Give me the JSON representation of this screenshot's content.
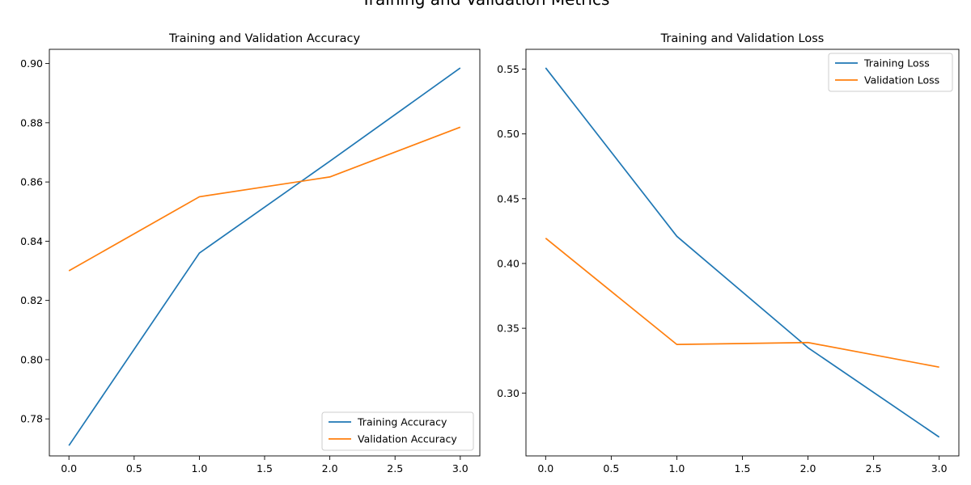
{
  "figure": {
    "suptitle": "Training and Validation Metrics"
  },
  "chart_data": [
    {
      "type": "line",
      "title": "Training and Validation Accuracy",
      "xlabel": "",
      "ylabel": "",
      "x": [
        0,
        1,
        2,
        3
      ],
      "xlim": [
        -0.15,
        3.15
      ],
      "ylim": [
        0.7675,
        0.9048
      ],
      "xticks": [
        "0.0",
        "0.5",
        "1.0",
        "1.5",
        "2.0",
        "2.5",
        "3.0"
      ],
      "yticks": [
        "0.78",
        "0.80",
        "0.82",
        "0.84",
        "0.86",
        "0.88",
        "0.90"
      ],
      "grid": false,
      "legend_position": "lower right",
      "series": [
        {
          "name": "Training Accuracy",
          "color": "#1f77b4",
          "values": [
            0.771,
            0.836,
            0.867,
            0.8985
          ]
        },
        {
          "name": "Validation Accuracy",
          "color": "#ff7f0e",
          "values": [
            0.83,
            0.855,
            0.8617,
            0.8785
          ]
        }
      ]
    },
    {
      "type": "line",
      "title": "Training and Validation Loss",
      "xlabel": "",
      "ylabel": "",
      "x": [
        0,
        1,
        2,
        3
      ],
      "xlim": [
        -0.15,
        3.15
      ],
      "ylim": [
        0.2515,
        0.5653
      ],
      "xticks": [
        "0.0",
        "0.5",
        "1.0",
        "1.5",
        "2.0",
        "2.5",
        "3.0"
      ],
      "yticks": [
        "0.30",
        "0.35",
        "0.40",
        "0.45",
        "0.50",
        "0.55"
      ],
      "grid": false,
      "legend_position": "upper right",
      "series": [
        {
          "name": "Training Loss",
          "color": "#1f77b4",
          "values": [
            0.551,
            0.421,
            0.335,
            0.266
          ]
        },
        {
          "name": "Validation Loss",
          "color": "#ff7f0e",
          "values": [
            0.4195,
            0.3375,
            0.339,
            0.32
          ]
        }
      ]
    }
  ]
}
